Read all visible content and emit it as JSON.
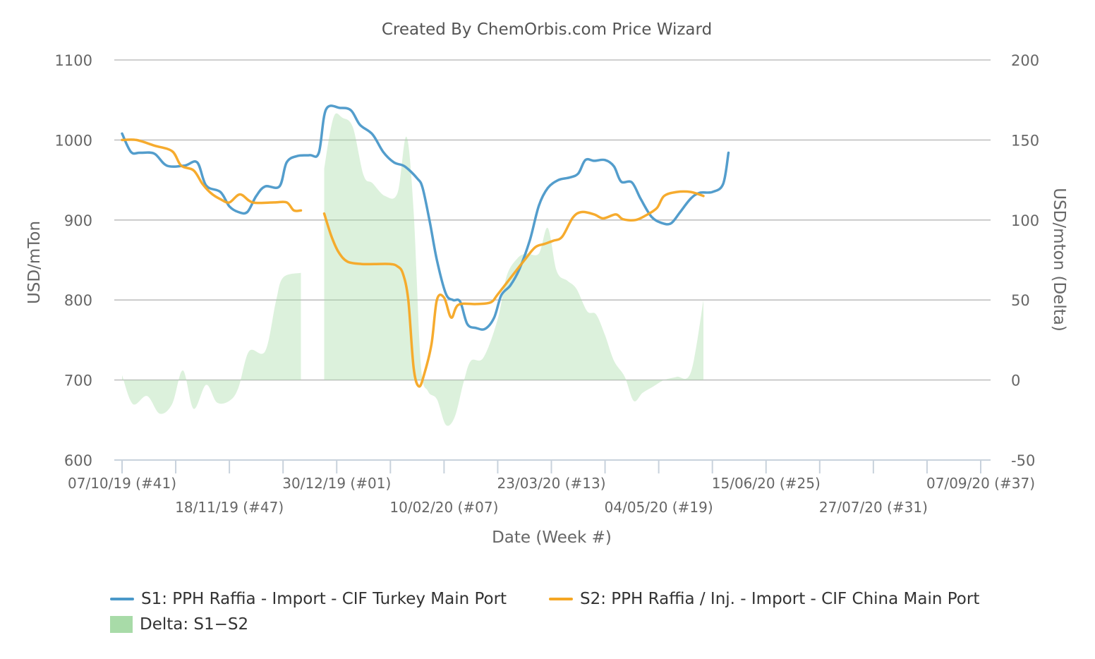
{
  "chart_data": {
    "type": "line",
    "title": "Created By ChemOrbis.com Price Wizard",
    "xlabel": "Date (Week #)",
    "ylabel": "USD/mTon",
    "y2label": "USD/mton (Delta)",
    "ylim": [
      600,
      1100
    ],
    "y2lim": [
      -50,
      200
    ],
    "yticks": [
      600,
      700,
      800,
      900,
      1000,
      1100
    ],
    "y2ticks": [
      -50,
      0,
      50,
      100,
      150,
      200
    ],
    "grid": true,
    "legend_position": "bottom",
    "x_week_range": [
      0,
      48
    ],
    "x_tick_labels": [
      {
        "week": 0,
        "label": "07/10/19 (#41)"
      },
      {
        "week": 6,
        "label": "18/11/19 (#47)"
      },
      {
        "week": 12,
        "label": "30/12/19 (#01)"
      },
      {
        "week": 18,
        "label": "10/02/20 (#07)"
      },
      {
        "week": 24,
        "label": "23/03/20 (#13)"
      },
      {
        "week": 30,
        "label": "04/05/20 (#19)"
      },
      {
        "week": 36,
        "label": "15/06/20 (#25)"
      },
      {
        "week": 42,
        "label": "27/07/20 (#31)"
      },
      {
        "week": 48,
        "label": "07/09/20 (#37)"
      }
    ],
    "series": [
      {
        "name": "S1: PPH Raffia - Import - CIF Turkey Main Port",
        "color": "#4a98c9",
        "axis": "left",
        "points": [
          [
            0.0,
            1008
          ],
          [
            0.5,
            985
          ],
          [
            1.0,
            984
          ],
          [
            1.8,
            983
          ],
          [
            2.5,
            968
          ],
          [
            3.5,
            968
          ],
          [
            4.2,
            972
          ],
          [
            4.7,
            943
          ],
          [
            5.5,
            935
          ],
          [
            6.0,
            917
          ],
          [
            6.5,
            910
          ],
          [
            7.0,
            910
          ],
          [
            7.5,
            930
          ],
          [
            8.0,
            942
          ],
          [
            8.8,
            942
          ],
          [
            9.2,
            972
          ],
          [
            9.8,
            980
          ],
          [
            10.5,
            981
          ],
          [
            11.0,
            984
          ],
          [
            11.4,
            1038
          ],
          [
            12.2,
            1040
          ],
          [
            12.8,
            1037
          ],
          [
            13.3,
            1019
          ],
          [
            14.0,
            1007
          ],
          [
            14.6,
            985
          ],
          [
            15.2,
            972
          ],
          [
            15.8,
            967
          ],
          [
            16.5,
            952
          ],
          [
            16.8,
            940
          ],
          [
            17.2,
            898
          ],
          [
            17.6,
            850
          ],
          [
            18.1,
            808
          ],
          [
            18.5,
            800
          ],
          [
            18.9,
            798
          ],
          [
            19.3,
            770
          ],
          [
            19.8,
            765
          ],
          [
            20.3,
            764
          ],
          [
            20.8,
            778
          ],
          [
            21.2,
            806
          ],
          [
            21.7,
            818
          ],
          [
            22.2,
            838
          ],
          [
            22.8,
            875
          ],
          [
            23.3,
            918
          ],
          [
            23.8,
            940
          ],
          [
            24.4,
            950
          ],
          [
            25.0,
            953
          ],
          [
            25.5,
            958
          ],
          [
            25.9,
            975
          ],
          [
            26.4,
            974
          ],
          [
            27.0,
            975
          ],
          [
            27.5,
            967
          ],
          [
            27.9,
            948
          ],
          [
            28.5,
            947
          ],
          [
            29.0,
            926
          ],
          [
            29.6,
            904
          ],
          [
            30.2,
            896
          ],
          [
            30.7,
            896
          ],
          [
            31.2,
            910
          ],
          [
            31.8,
            927
          ],
          [
            32.3,
            934
          ],
          [
            33.0,
            935
          ],
          [
            33.6,
            945
          ],
          [
            33.9,
            984
          ]
        ]
      },
      {
        "name": "S2: PPH Raffia / Inj. - Import - CIF China Main Port",
        "color": "#f5a623",
        "axis": "left",
        "segments": [
          [
            [
              0.0,
              1000
            ],
            [
              0.8,
              1000
            ],
            [
              1.8,
              993
            ],
            [
              2.8,
              986
            ],
            [
              3.3,
              968
            ],
            [
              4.0,
              962
            ],
            [
              4.5,
              945
            ],
            [
              5.0,
              933
            ],
            [
              5.5,
              926
            ],
            [
              6.0,
              922
            ],
            [
              6.6,
              932
            ],
            [
              7.3,
              922
            ],
            [
              8.5,
              922
            ],
            [
              9.2,
              922
            ],
            [
              9.6,
              912
            ],
            [
              10.0,
              912
            ]
          ],
          [
            [
              11.3,
              908
            ],
            [
              11.7,
              880
            ],
            [
              12.1,
              860
            ],
            [
              12.6,
              848
            ],
            [
              13.4,
              845
            ],
            [
              14.1,
              845
            ],
            [
              15.0,
              845
            ],
            [
              15.4,
              842
            ],
            [
              15.7,
              833
            ],
            [
              16.0,
              800
            ],
            [
              16.3,
              715
            ],
            [
              16.6,
              692
            ],
            [
              16.9,
              708
            ],
            [
              17.3,
              745
            ],
            [
              17.6,
              800
            ],
            [
              18.0,
              803
            ],
            [
              18.4,
              778
            ],
            [
              18.8,
              794
            ],
            [
              19.8,
              795
            ],
            [
              20.6,
              797
            ],
            [
              21.0,
              807
            ],
            [
              21.8,
              830
            ],
            [
              22.5,
              850
            ],
            [
              23.1,
              866
            ],
            [
              23.6,
              870
            ],
            [
              24.1,
              874
            ],
            [
              24.6,
              879
            ],
            [
              25.2,
              903
            ],
            [
              25.7,
              910
            ],
            [
              26.4,
              907
            ],
            [
              26.9,
              902
            ],
            [
              27.6,
              907
            ],
            [
              28.0,
              901
            ],
            [
              28.7,
              900
            ],
            [
              29.3,
              906
            ],
            [
              29.9,
              915
            ],
            [
              30.3,
              930
            ],
            [
              31.0,
              935
            ],
            [
              31.8,
              935
            ],
            [
              32.5,
              930
            ]
          ]
        ]
      },
      {
        "name": "Delta: S1−S2",
        "color": "#a8dba8",
        "type": "area",
        "axis": "right",
        "segments": [
          [
            [
              0.0,
              3
            ],
            [
              0.6,
              -15
            ],
            [
              1.4,
              -10
            ],
            [
              2.1,
              -21
            ],
            [
              2.8,
              -15
            ],
            [
              3.4,
              6
            ],
            [
              4.0,
              -18
            ],
            [
              4.7,
              -3
            ],
            [
              5.3,
              -14
            ],
            [
              6.0,
              -13
            ],
            [
              6.5,
              -5
            ],
            [
              7.1,
              18
            ],
            [
              8.0,
              18
            ],
            [
              8.6,
              49
            ],
            [
              9.0,
              64
            ],
            [
              10.0,
              67
            ]
          ],
          [
            [
              11.3,
              132
            ],
            [
              11.6,
              153
            ],
            [
              11.9,
              166
            ],
            [
              12.3,
              164
            ],
            [
              12.9,
              158
            ],
            [
              13.5,
              128
            ],
            [
              14.0,
              123
            ],
            [
              14.7,
              115
            ],
            [
              15.4,
              117
            ],
            [
              15.9,
              152
            ],
            [
              16.3,
              105
            ],
            [
              16.7,
              10
            ],
            [
              17.1,
              -7
            ],
            [
              17.6,
              -12
            ],
            [
              18.1,
              -28
            ],
            [
              18.6,
              -23
            ],
            [
              19.1,
              -1
            ],
            [
              19.5,
              12
            ],
            [
              20.2,
              14
            ],
            [
              21.0,
              38
            ],
            [
              21.5,
              65
            ],
            [
              22.1,
              76
            ],
            [
              22.6,
              79
            ],
            [
              23.3,
              79
            ],
            [
              23.8,
              95
            ],
            [
              24.3,
              68
            ],
            [
              24.9,
              62
            ],
            [
              25.4,
              57
            ],
            [
              26.0,
              43
            ],
            [
              26.5,
              41
            ],
            [
              27.0,
              28
            ],
            [
              27.5,
              12
            ],
            [
              28.1,
              2
            ],
            [
              28.6,
              -13
            ],
            [
              29.1,
              -8
            ],
            [
              29.7,
              -4
            ],
            [
              30.3,
              0
            ],
            [
              31.0,
              2
            ],
            [
              31.8,
              5
            ],
            [
              32.5,
              50
            ]
          ]
        ]
      }
    ]
  },
  "legend": {
    "s1_label": "S1: PPH Raffia - Import - CIF Turkey Main Port",
    "s2_label": "S2: PPH Raffia / Inj. - Import - CIF China Main Port",
    "delta_label": "Delta: S1−S2"
  }
}
